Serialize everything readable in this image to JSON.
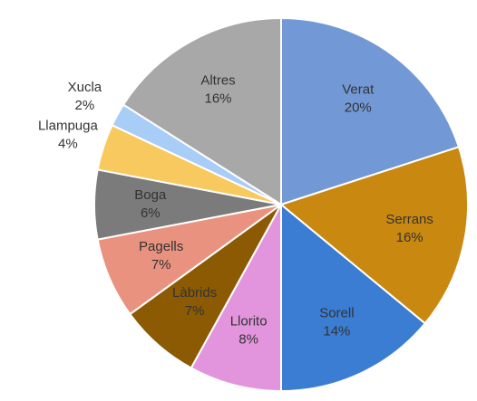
{
  "chart_data": {
    "type": "pie",
    "categories": [
      "Verat",
      "Serrans",
      "Sorell",
      "Llorito",
      "Làbrids",
      "Pagells",
      "Boga",
      "Llampuga",
      "Xucla",
      "Altres"
    ],
    "values": [
      20,
      16,
      14,
      8,
      7,
      7,
      6,
      4,
      2,
      16
    ],
    "value_labels": [
      "20%",
      "16%",
      "14%",
      "8%",
      "7%",
      "7%",
      "6%",
      "4%",
      "2%",
      "16%"
    ],
    "colors": [
      "#7299d6",
      "#c98810",
      "#3a7dd2",
      "#e295dc",
      "#8c5a02",
      "#e9927f",
      "#7b7b7b",
      "#f8c95e",
      "#a8cdf7",
      "#a8a8a8"
    ]
  }
}
